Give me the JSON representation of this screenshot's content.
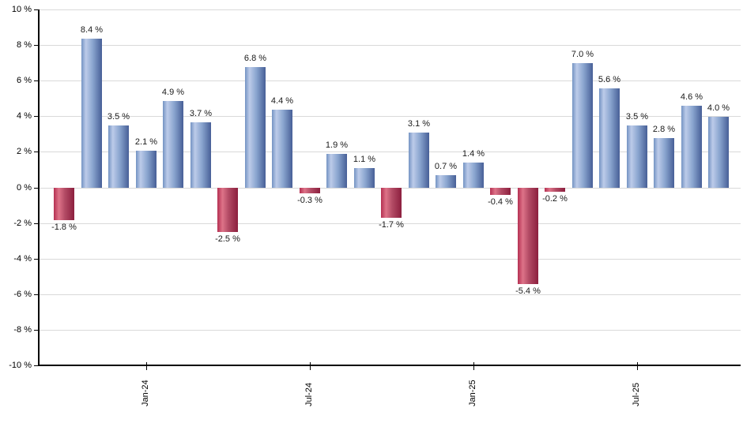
{
  "chart_data": {
    "type": "bar",
    "title": "",
    "xlabel": "",
    "ylabel": "",
    "unit": "%",
    "grid": true,
    "legend": false,
    "y_axis": {
      "min": -10,
      "max": 10,
      "step": 2,
      "tick_labels": [
        "10 %",
        "8 %",
        "6 %",
        "4 %",
        "2 %",
        "0 %",
        "-2 %",
        "-4 %",
        "-6 %",
        "-8 %",
        "-10 %"
      ]
    },
    "x_ticks": [
      {
        "bar_index": 3,
        "label": "Jan-24"
      },
      {
        "bar_index": 9,
        "label": "Jul-24"
      },
      {
        "bar_index": 15,
        "label": "Jan-25"
      },
      {
        "bar_index": 21,
        "label": "Jul-25"
      }
    ],
    "bars": [
      {
        "value": -1.8,
        "label": "-1.8 %"
      },
      {
        "value": 8.4,
        "label": "8.4 %"
      },
      {
        "value": 3.5,
        "label": "3.5 %"
      },
      {
        "value": 2.1,
        "label": "2.1 %"
      },
      {
        "value": 4.9,
        "label": "4.9 %"
      },
      {
        "value": 3.7,
        "label": "3.7 %"
      },
      {
        "value": -2.5,
        "label": "-2.5 %"
      },
      {
        "value": 6.8,
        "label": "6.8 %"
      },
      {
        "value": 4.4,
        "label": "4.4 %"
      },
      {
        "value": -0.3,
        "label": "-0.3 %"
      },
      {
        "value": 1.9,
        "label": "1.9 %"
      },
      {
        "value": 1.1,
        "label": "1.1 %"
      },
      {
        "value": -1.7,
        "label": "-1.7 %"
      },
      {
        "value": 3.1,
        "label": "3.1 %"
      },
      {
        "value": 0.7,
        "label": "0.7 %"
      },
      {
        "value": 1.4,
        "label": "1.4 %"
      },
      {
        "value": -0.4,
        "label": "-0.4 %"
      },
      {
        "value": -5.4,
        "label": "-5.4 %"
      },
      {
        "value": -0.2,
        "label": "-0.2 %"
      },
      {
        "value": 7.0,
        "label": "7.0 %"
      },
      {
        "value": 5.6,
        "label": "5.6 %"
      },
      {
        "value": 3.5,
        "label": "3.5 %"
      },
      {
        "value": 2.8,
        "label": "2.8 %"
      },
      {
        "value": 4.6,
        "label": "4.6 %"
      },
      {
        "value": 4.0,
        "label": "4.0 %"
      }
    ],
    "colors": {
      "positive_bar_edge": "#475f97",
      "positive_bar_highlight": "#bccbe9",
      "negative_bar_edge": "#8c1f3e",
      "negative_bar_highlight": "#dd7388",
      "gridline": "#d9d9d9",
      "axis": "#000000",
      "label_text": "#1a1a1a",
      "background": "#ffffff"
    }
  }
}
